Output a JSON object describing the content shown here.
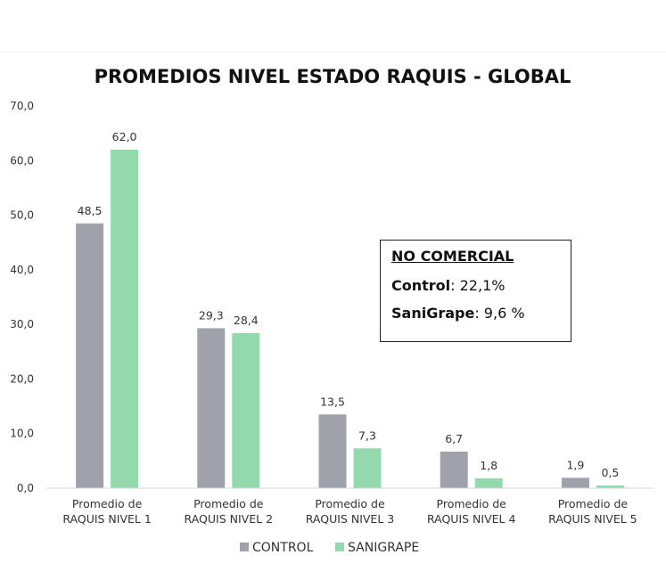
{
  "chart_data": {
    "type": "bar",
    "title": "PROMEDIOS NIVEL ESTADO RAQUIS - GLOBAL",
    "categories": [
      [
        "Promedio de",
        "RAQUIS NIVEL 1"
      ],
      [
        "Promedio de",
        "RAQUIS NIVEL 2"
      ],
      [
        "Promedio de",
        "RAQUIS NIVEL 3"
      ],
      [
        "Promedio de",
        "RAQUIS NIVEL 4"
      ],
      [
        "Promedio de",
        "RAQUIS NIVEL 5"
      ]
    ],
    "series": [
      {
        "name": "CONTROL",
        "color": "#a0a2ab",
        "values": [
          48.5,
          29.3,
          13.5,
          6.7,
          1.9
        ],
        "labels": [
          "48,5",
          "29,3",
          "13,5",
          "6,7",
          "1,9"
        ]
      },
      {
        "name": "SANIGRAPE",
        "color": "#92d9ad",
        "values": [
          62.0,
          28.4,
          7.3,
          1.8,
          0.5
        ],
        "labels": [
          "62,0",
          "28,4",
          "7,3",
          "1,8",
          "0,5"
        ]
      }
    ],
    "ylim": [
      0,
      70
    ],
    "yticks": [
      0,
      10,
      20,
      30,
      40,
      50,
      60,
      70
    ],
    "ytick_labels": [
      "0,0",
      "10,0",
      "20,0",
      "30,0",
      "40,0",
      "50,0",
      "60,0",
      "70,0"
    ],
    "legend_position": "bottom",
    "grid": false
  },
  "note": {
    "title": "NO COMERCIAL",
    "control_label": "Control",
    "control_value": ": 22,1%",
    "sanigrape_label": "SaniGrape",
    "sanigrape_value": ": 9,6 %"
  }
}
